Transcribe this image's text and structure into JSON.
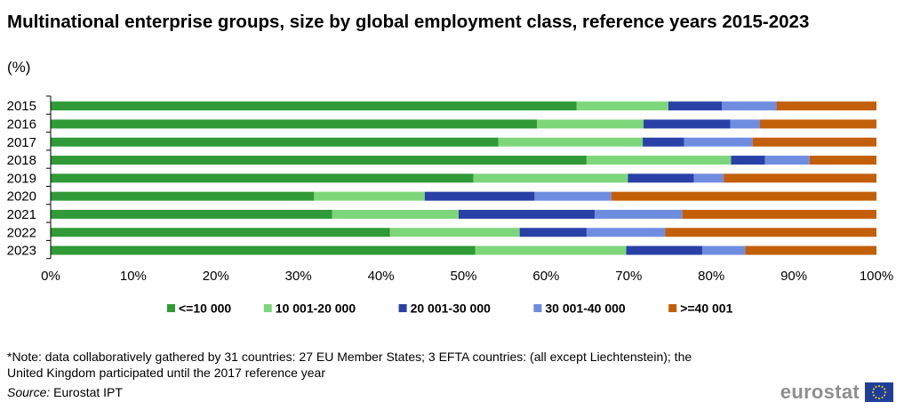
{
  "title": "Multinational enterprise groups, size by global employment class, reference years 2015-2023",
  "unit": "(%)",
  "note": "*Note: data collaboratively gathered  by  31 countries: 27 EU Member States; 3 EFTA countries: (all except Liechtenstein);  the United Kingdom participated until the 2017 reference year",
  "source_label": "Source:",
  "source_value": " Eurostat IPT",
  "logo_text": "eurostat",
  "chart_data": {
    "type": "bar",
    "orientation": "horizontal",
    "stacked": "percent",
    "categories": [
      "2015",
      "2016",
      "2017",
      "2018",
      "2019",
      "2020",
      "2021",
      "2022",
      "2023"
    ],
    "series": [
      {
        "name": "<=10 000",
        "color": "#2f9a37",
        "values": [
          63.7,
          58.9,
          54.2,
          64.9,
          51.2,
          31.9,
          34.1,
          41.1,
          51.4
        ]
      },
      {
        "name": "10 001-20 000",
        "color": "#7ed67a",
        "values": [
          11.1,
          12.9,
          17.5,
          17.5,
          18.7,
          13.4,
          15.3,
          15.7,
          18.3
        ]
      },
      {
        "name": "20 001-30 000",
        "color": "#2941a6",
        "values": [
          6.5,
          10.5,
          5.0,
          4.1,
          8.0,
          13.3,
          16.5,
          8.1,
          9.2
        ]
      },
      {
        "name": "30 001-40 000",
        "color": "#6f8de0",
        "values": [
          6.6,
          3.6,
          8.3,
          5.4,
          3.6,
          9.3,
          10.6,
          9.5,
          5.2
        ]
      },
      {
        "name": ">=40 001",
        "color": "#c25f08",
        "values": [
          12.1,
          14.1,
          15.0,
          8.1,
          18.5,
          32.1,
          23.5,
          25.6,
          15.9
        ]
      }
    ],
    "xlim": [
      0,
      100
    ],
    "xticks": [
      "0%",
      "10%",
      "20%",
      "30%",
      "40%",
      "50%",
      "60%",
      "70%",
      "80%",
      "90%",
      "100%"
    ],
    "legend_position": "bottom",
    "grid": false
  }
}
